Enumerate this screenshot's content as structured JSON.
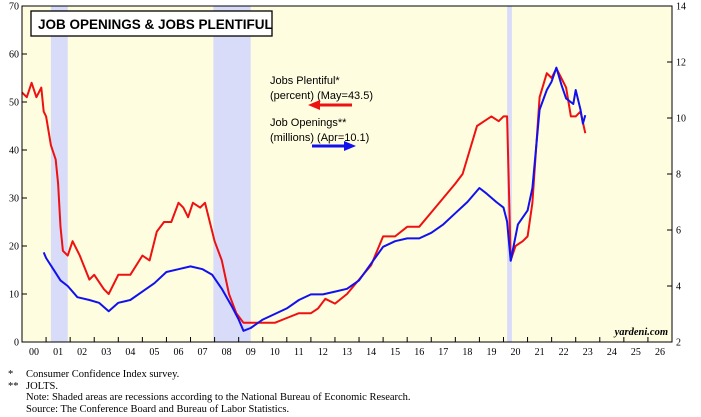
{
  "chart_data": {
    "type": "line",
    "title": "JOB OPENINGS & JOBS PLENTIFUL",
    "watermark": "yardeni.com",
    "x_ticks": [
      "00",
      "01",
      "02",
      "03",
      "04",
      "05",
      "06",
      "07",
      "08",
      "09",
      "10",
      "11",
      "12",
      "13",
      "14",
      "15",
      "16",
      "17",
      "18",
      "19",
      "20",
      "21",
      "22",
      "23",
      "24",
      "25",
      "26"
    ],
    "x_range": [
      2000,
      2027
    ],
    "y_left": {
      "min": 0,
      "max": 70,
      "ticks": [
        0,
        10,
        20,
        30,
        40,
        50,
        60,
        70
      ]
    },
    "y_right": {
      "min": 2,
      "max": 14,
      "ticks": [
        2,
        4,
        6,
        8,
        10,
        12,
        14
      ]
    },
    "recessions": [
      [
        2001.2,
        2001.9
      ],
      [
        2007.95,
        2009.5
      ],
      [
        2020.15,
        2020.35
      ]
    ],
    "background_color": "#fffde0",
    "recession_color": "#d8dcf8",
    "series": [
      {
        "name_line1": "Jobs Plentiful*",
        "name_line2": "(percent) (May=43.5)",
        "axis": "left",
        "color": "#ee1111",
        "points": [
          [
            2000.0,
            52
          ],
          [
            2000.2,
            51
          ],
          [
            2000.4,
            54
          ],
          [
            2000.6,
            51
          ],
          [
            2000.8,
            53
          ],
          [
            2000.9,
            48
          ],
          [
            2001.0,
            47
          ],
          [
            2001.2,
            41
          ],
          [
            2001.4,
            38
          ],
          [
            2001.5,
            33
          ],
          [
            2001.6,
            24
          ],
          [
            2001.7,
            19
          ],
          [
            2001.9,
            18
          ],
          [
            2002.1,
            21
          ],
          [
            2002.4,
            18
          ],
          [
            2002.8,
            13
          ],
          [
            2003.0,
            14
          ],
          [
            2003.4,
            11
          ],
          [
            2003.6,
            10
          ],
          [
            2004.0,
            14
          ],
          [
            2004.5,
            14
          ],
          [
            2005.0,
            18
          ],
          [
            2005.3,
            17
          ],
          [
            2005.6,
            23
          ],
          [
            2005.9,
            25
          ],
          [
            2006.2,
            25
          ],
          [
            2006.5,
            29
          ],
          [
            2006.7,
            28
          ],
          [
            2006.9,
            26
          ],
          [
            2007.1,
            29
          ],
          [
            2007.4,
            28
          ],
          [
            2007.6,
            29
          ],
          [
            2007.8,
            25
          ],
          [
            2008.0,
            21
          ],
          [
            2008.3,
            17
          ],
          [
            2008.6,
            10
          ],
          [
            2008.9,
            6
          ],
          [
            2009.2,
            4
          ],
          [
            2009.5,
            4
          ],
          [
            2010.0,
            4
          ],
          [
            2010.5,
            4
          ],
          [
            2011.0,
            5
          ],
          [
            2011.5,
            6
          ],
          [
            2012.0,
            6
          ],
          [
            2012.3,
            7
          ],
          [
            2012.6,
            9
          ],
          [
            2013.0,
            8
          ],
          [
            2013.5,
            10
          ],
          [
            2014.0,
            13
          ],
          [
            2014.5,
            16
          ],
          [
            2015.0,
            22
          ],
          [
            2015.5,
            22
          ],
          [
            2016.0,
            24
          ],
          [
            2016.5,
            24
          ],
          [
            2017.0,
            27
          ],
          [
            2017.5,
            30
          ],
          [
            2018.0,
            33
          ],
          [
            2018.3,
            35
          ],
          [
            2018.6,
            40
          ],
          [
            2018.9,
            45
          ],
          [
            2019.2,
            46
          ],
          [
            2019.5,
            47
          ],
          [
            2019.8,
            46
          ],
          [
            2020.0,
            47
          ],
          [
            2020.15,
            47
          ],
          [
            2020.3,
            17
          ],
          [
            2020.5,
            20
          ],
          [
            2020.8,
            21
          ],
          [
            2021.0,
            22
          ],
          [
            2021.2,
            29
          ],
          [
            2021.5,
            51
          ],
          [
            2021.8,
            56
          ],
          [
            2022.0,
            55
          ],
          [
            2022.2,
            57
          ],
          [
            2022.4,
            55
          ],
          [
            2022.6,
            53
          ],
          [
            2022.8,
            47
          ],
          [
            2023.0,
            47
          ],
          [
            2023.2,
            48
          ],
          [
            2023.4,
            43.5
          ]
        ]
      },
      {
        "name_line1": "Job Openings**",
        "name_line2": "(millions) (Apr=10.1)",
        "axis": "right",
        "color": "#1111ee",
        "points": [
          [
            2000.9,
            5.2
          ],
          [
            2001.0,
            5.0
          ],
          [
            2001.3,
            4.6
          ],
          [
            2001.6,
            4.2
          ],
          [
            2001.9,
            4.0
          ],
          [
            2002.3,
            3.6
          ],
          [
            2002.8,
            3.5
          ],
          [
            2003.2,
            3.4
          ],
          [
            2003.6,
            3.1
          ],
          [
            2004.0,
            3.4
          ],
          [
            2004.5,
            3.5
          ],
          [
            2005.0,
            3.8
          ],
          [
            2005.5,
            4.1
          ],
          [
            2006.0,
            4.5
          ],
          [
            2006.5,
            4.6
          ],
          [
            2007.0,
            4.7
          ],
          [
            2007.5,
            4.6
          ],
          [
            2007.9,
            4.4
          ],
          [
            2008.3,
            3.9
          ],
          [
            2008.7,
            3.3
          ],
          [
            2009.0,
            2.8
          ],
          [
            2009.2,
            2.4
          ],
          [
            2009.5,
            2.5
          ],
          [
            2010.0,
            2.8
          ],
          [
            2010.5,
            3.0
          ],
          [
            2011.0,
            3.2
          ],
          [
            2011.5,
            3.5
          ],
          [
            2012.0,
            3.7
          ],
          [
            2012.5,
            3.7
          ],
          [
            2013.0,
            3.8
          ],
          [
            2013.5,
            3.9
          ],
          [
            2014.0,
            4.2
          ],
          [
            2014.5,
            4.8
          ],
          [
            2015.0,
            5.4
          ],
          [
            2015.5,
            5.6
          ],
          [
            2016.0,
            5.7
          ],
          [
            2016.5,
            5.7
          ],
          [
            2017.0,
            5.9
          ],
          [
            2017.5,
            6.2
          ],
          [
            2018.0,
            6.6
          ],
          [
            2018.5,
            7.0
          ],
          [
            2019.0,
            7.5
          ],
          [
            2019.3,
            7.3
          ],
          [
            2019.7,
            7.0
          ],
          [
            2020.0,
            6.8
          ],
          [
            2020.15,
            6.3
          ],
          [
            2020.3,
            4.9
          ],
          [
            2020.6,
            6.2
          ],
          [
            2021.0,
            6.7
          ],
          [
            2021.2,
            7.5
          ],
          [
            2021.5,
            10.3
          ],
          [
            2021.8,
            11.0
          ],
          [
            2022.0,
            11.3
          ],
          [
            2022.2,
            11.8
          ],
          [
            2022.4,
            11.2
          ],
          [
            2022.6,
            10.7
          ],
          [
            2022.9,
            10.5
          ],
          [
            2023.0,
            11.0
          ],
          [
            2023.2,
            10.3
          ],
          [
            2023.3,
            9.8
          ],
          [
            2023.4,
            10.1
          ]
        ]
      }
    ]
  },
  "footnotes": [
    {
      "mark": "*",
      "text": "Consumer Confidence Index survey."
    },
    {
      "mark": "**",
      "text": "JOLTS."
    },
    {
      "mark": "",
      "text": "Note: Shaded areas are recessions according to the National Bureau of Economic Research."
    },
    {
      "mark": "",
      "text": "Source: The Conference Board and Bureau of Labor Statistics."
    }
  ]
}
